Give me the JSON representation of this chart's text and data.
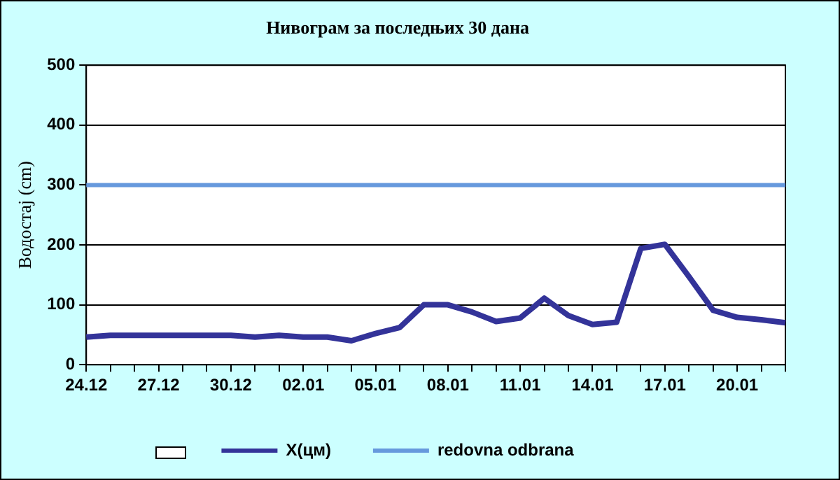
{
  "chart_data": {
    "type": "line",
    "title": "Нивограм за последњих 30 дана",
    "ylabel": "Водостај (cm)",
    "categories": [
      "24.12",
      null,
      null,
      "27.12",
      null,
      null,
      "30.12",
      null,
      null,
      "02.01",
      null,
      null,
      "05.01",
      null,
      null,
      "08.01",
      null,
      null,
      "11.01",
      null,
      null,
      "14.01",
      null,
      null,
      "17.01",
      null,
      null,
      "20.01",
      null,
      null
    ],
    "series": [
      {
        "name": "X(цм)",
        "color": "#333399",
        "values": [
          46,
          49,
          49,
          49,
          49,
          49,
          49,
          46,
          49,
          46,
          46,
          40,
          52,
          62,
          100,
          100,
          88,
          72,
          78,
          111,
          82,
          67,
          71,
          194,
          201,
          147,
          91,
          79,
          75,
          70
        ]
      }
    ],
    "ref_lines": [
      {
        "axis": "y",
        "value": 300,
        "label": "redovna odbrana",
        "color": "#6699dd"
      }
    ],
    "ylim": [
      0,
      500
    ],
    "yticks": [
      0,
      100,
      200,
      300,
      400,
      500
    ],
    "grid": "y",
    "legend": "bottom",
    "marker": "none",
    "line_style": "solid"
  }
}
